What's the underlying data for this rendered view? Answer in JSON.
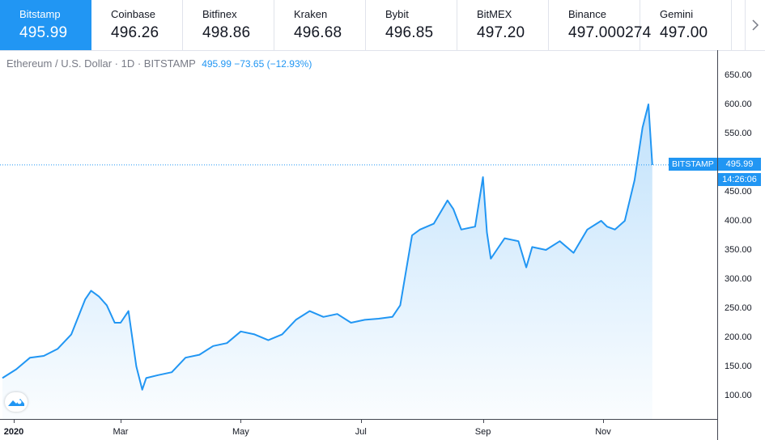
{
  "exchanges": [
    {
      "name": "Bitstamp",
      "price": "495.99",
      "active": true
    },
    {
      "name": "Coinbase",
      "price": "496.26"
    },
    {
      "name": "Bitfinex",
      "price": "498.86"
    },
    {
      "name": "Kraken",
      "price": "496.68"
    },
    {
      "name": "Bybit",
      "price": "496.85"
    },
    {
      "name": "BitMEX",
      "price": "497.20"
    },
    {
      "name": "Binance",
      "price": "497.000274"
    },
    {
      "name": "Gemini",
      "price": "497.00"
    }
  ],
  "legend": {
    "symbol": "Ethereum / U.S. Dollar · 1D · BITSTAMP",
    "values": "495.99 −73.65 (−12.93%)"
  },
  "price_label": "495.99",
  "series_label": "BITSTAMP",
  "time_label": "14:26:06",
  "colors": {
    "accent": "#2196f3",
    "line": "#2196f3"
  },
  "chart_data": {
    "type": "area",
    "title": "Ethereum / U.S. Dollar · 1D · BITSTAMP",
    "y_ticks": [
      "650.00",
      "600.00",
      "550.00",
      "500.00",
      "450.00",
      "400.00",
      "350.00",
      "300.00",
      "250.00",
      "200.00",
      "150.00",
      "100.00"
    ],
    "x_ticks": [
      "2020",
      "Mar",
      "May",
      "Jul",
      "Sep",
      "Nov"
    ],
    "ylim": [
      60,
      680
    ],
    "grid": false,
    "last_value": 495.99,
    "series": [
      {
        "x": [
          "2020-01-01",
          "2020-01-08",
          "2020-01-15",
          "2020-01-22",
          "2020-01-29",
          "2020-02-05",
          "2020-02-12",
          "2020-02-15",
          "2020-02-19",
          "2020-02-23",
          "2020-02-27",
          "2020-03-01",
          "2020-03-05",
          "2020-03-09",
          "2020-03-12",
          "2020-03-14",
          "2020-03-20",
          "2020-03-27",
          "2020-04-03",
          "2020-04-10",
          "2020-04-17",
          "2020-04-24",
          "2020-05-01",
          "2020-05-08",
          "2020-05-15",
          "2020-05-22",
          "2020-05-29",
          "2020-06-05",
          "2020-06-12",
          "2020-06-19",
          "2020-06-26",
          "2020-07-03",
          "2020-07-10",
          "2020-07-17",
          "2020-07-21",
          "2020-07-24",
          "2020-07-27",
          "2020-07-31",
          "2020-08-07",
          "2020-08-14",
          "2020-08-17",
          "2020-08-21",
          "2020-08-28",
          "2020-09-01",
          "2020-09-03",
          "2020-09-05",
          "2020-09-08",
          "2020-09-12",
          "2020-09-19",
          "2020-09-23",
          "2020-09-26",
          "2020-10-03",
          "2020-10-10",
          "2020-10-17",
          "2020-10-24",
          "2020-10-31",
          "2020-11-03",
          "2020-11-07",
          "2020-11-12",
          "2020-11-17",
          "2020-11-21",
          "2020-11-24",
          "2020-11-26"
        ],
        "y": [
          130,
          145,
          165,
          168,
          180,
          205,
          265,
          280,
          270,
          255,
          225,
          225,
          245,
          150,
          110,
          130,
          135,
          140,
          165,
          170,
          185,
          190,
          210,
          205,
          195,
          205,
          230,
          245,
          235,
          240,
          225,
          230,
          232,
          235,
          255,
          315,
          375,
          385,
          395,
          435,
          420,
          385,
          390,
          475,
          380,
          335,
          350,
          370,
          365,
          320,
          355,
          350,
          365,
          345,
          385,
          400,
          390,
          385,
          400,
          470,
          560,
          600,
          496
        ]
      }
    ]
  }
}
